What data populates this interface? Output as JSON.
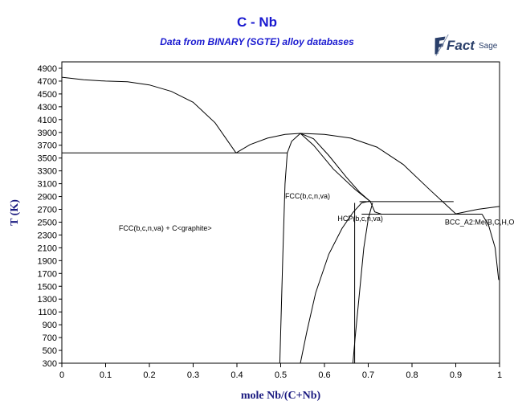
{
  "chart_data": {
    "type": "line",
    "title": "C - Nb",
    "subtitle": "Data from BINARY (SGTE) alloy databases",
    "xlabel": "mole Nb/(C+Nb)",
    "ylabel": "T (K)",
    "xlim": [
      0,
      1
    ],
    "ylim": [
      300,
      5000
    ],
    "xticks": [
      0,
      0.1,
      0.2,
      0.3,
      0.4,
      0.5,
      0.6,
      0.7,
      0.8,
      0.9,
      1
    ],
    "xtick_labels": [
      "0",
      "0.1",
      "0.2",
      "0.3",
      "0.4",
      "0.5",
      "0.6",
      "0.7",
      "0.8",
      "0.9",
      "1"
    ],
    "yticks": [
      300,
      500,
      700,
      900,
      1100,
      1300,
      1500,
      1700,
      1900,
      2100,
      2300,
      2500,
      2700,
      2900,
      3100,
      3300,
      3500,
      3700,
      3900,
      4100,
      4300,
      4500,
      4700,
      4900
    ],
    "grid": false,
    "logo": "FactSage",
    "series": [
      {
        "values": [
          [
            0,
            4760
          ],
          [
            0.05,
            4720
          ],
          [
            0.1,
            4700
          ],
          [
            0.15,
            4690
          ],
          [
            0.2,
            4640
          ],
          [
            0.25,
            4540
          ],
          [
            0.3,
            4370
          ],
          [
            0.35,
            4050
          ],
          [
            0.398,
            3580
          ]
        ]
      },
      {
        "values": [
          [
            0.398,
            3580
          ],
          [
            0.43,
            3710
          ],
          [
            0.47,
            3810
          ],
          [
            0.51,
            3870
          ],
          [
            0.545,
            3885
          ],
          [
            0.6,
            3870
          ],
          [
            0.66,
            3810
          ],
          [
            0.72,
            3670
          ],
          [
            0.78,
            3400
          ],
          [
            0.84,
            3010
          ],
          [
            0.9,
            2630
          ]
        ]
      },
      {
        "values": [
          [
            0,
            3580
          ],
          [
            0.515,
            3580
          ]
        ]
      },
      {
        "values": [
          [
            0.498,
            300
          ],
          [
            0.505,
            2000
          ],
          [
            0.51,
            3100
          ],
          [
            0.515,
            3580
          ],
          [
            0.525,
            3760
          ],
          [
            0.545,
            3885
          ]
        ]
      },
      {
        "values": [
          [
            0.545,
            3885
          ],
          [
            0.575,
            3800
          ],
          [
            0.61,
            3540
          ],
          [
            0.65,
            3200
          ],
          [
            0.68,
            2970
          ],
          [
            0.705,
            2820
          ]
        ]
      },
      {
        "values": [
          [
            0.545,
            3885
          ],
          [
            0.575,
            3700
          ],
          [
            0.62,
            3330
          ],
          [
            0.67,
            3010
          ],
          [
            0.705,
            2820
          ]
        ]
      },
      {
        "values": [
          [
            0.68,
            2820
          ],
          [
            0.895,
            2820
          ]
        ]
      },
      {
        "values": [
          [
            0.685,
            2625
          ],
          [
            0.96,
            2625
          ]
        ]
      },
      {
        "values": [
          [
            0.545,
            300
          ],
          [
            0.56,
            800
          ],
          [
            0.58,
            1400
          ],
          [
            0.61,
            2000
          ],
          [
            0.64,
            2400
          ],
          [
            0.665,
            2650
          ],
          [
            0.685,
            2800
          ],
          [
            0.705,
            2830
          ]
        ]
      },
      {
        "values": [
          [
            0.665,
            300
          ],
          [
            0.67,
            700
          ],
          [
            0.68,
            1400
          ],
          [
            0.69,
            2100
          ],
          [
            0.7,
            2550
          ],
          [
            0.71,
            2800
          ]
        ]
      },
      {
        "values": [
          [
            0.669,
            300
          ],
          [
            0.669,
            2800
          ]
        ]
      },
      {
        "values": [
          [
            0.705,
            2820
          ],
          [
            0.715,
            2660
          ],
          [
            0.73,
            2625
          ]
        ]
      },
      {
        "values": [
          [
            0.9,
            2630
          ],
          [
            0.95,
            2700
          ],
          [
            1,
            2745
          ]
        ]
      },
      {
        "values": [
          [
            0.96,
            2625
          ],
          [
            0.975,
            2450
          ],
          [
            0.99,
            2100
          ],
          [
            0.998,
            1600
          ]
        ]
      }
    ],
    "annotations": [
      {
        "text": "FCC(b,c,n,va) + C<graphite>",
        "x": 0.13,
        "y": 2370
      },
      {
        "text": "FCC(b,c,n,va)",
        "x": 0.51,
        "y": 2870
      },
      {
        "text": "HCP(b,c,n,va)",
        "x": 0.63,
        "y": 2520
      },
      {
        "text": "BCC_A2:Me(B,C,H,O",
        "x": 0.875,
        "y": 2460
      }
    ]
  }
}
